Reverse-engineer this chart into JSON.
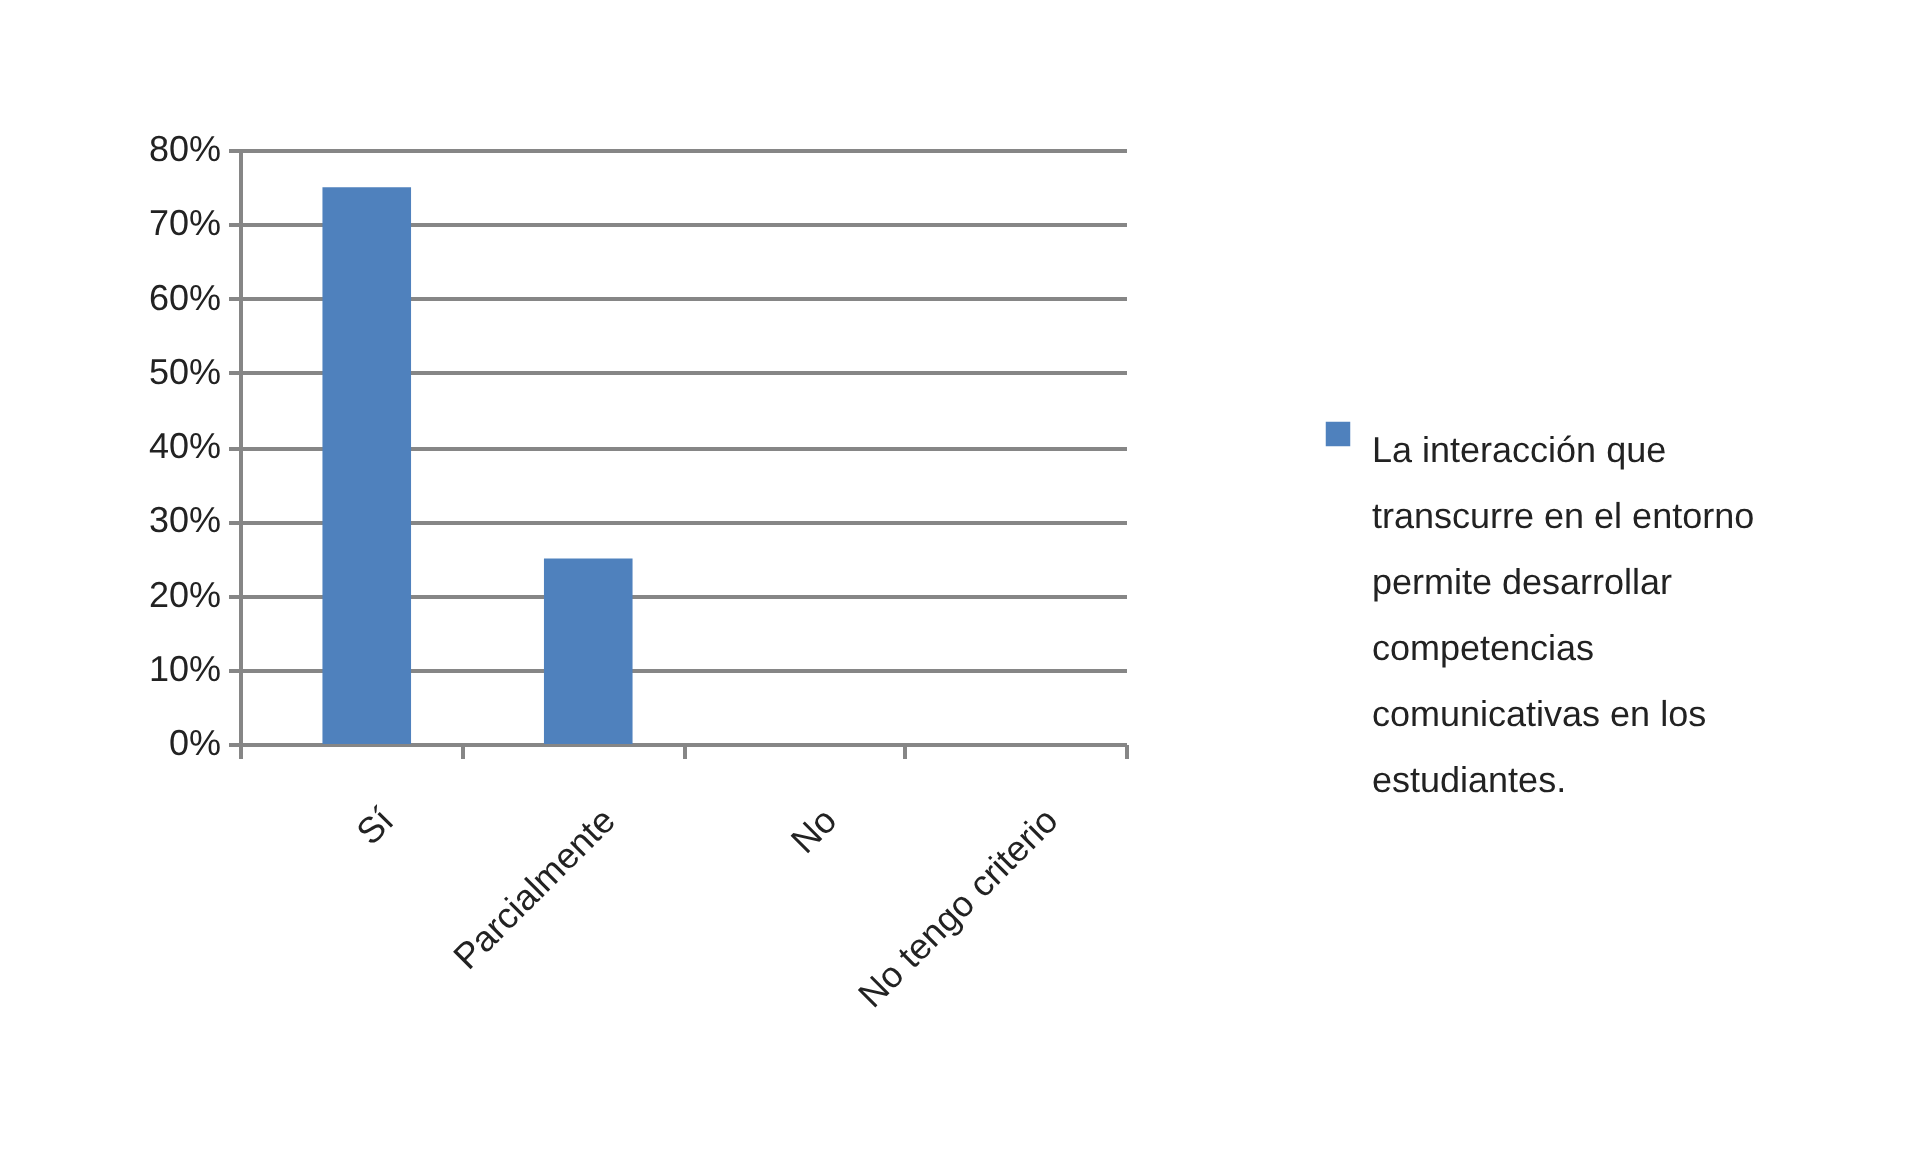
{
  "chart_data": {
    "type": "bar",
    "categories": [
      "Sí",
      "Parcialmente",
      "No",
      "No tengo criterio"
    ],
    "series": [
      {
        "name": "La interacción que transcurre en el entorno permite desarrollar competencias comunicativas en los estudiantes.",
        "color": "#4f81bd",
        "values": [
          75,
          25,
          0,
          0
        ]
      }
    ],
    "ylim": [
      0,
      80
    ],
    "yticks": [
      {
        "value": 0,
        "label": "0%"
      },
      {
        "value": 10,
        "label": "10%"
      },
      {
        "value": 20,
        "label": "20%"
      },
      {
        "value": 30,
        "label": "30%"
      },
      {
        "value": 40,
        "label": "40%"
      },
      {
        "value": 50,
        "label": "50%"
      },
      {
        "value": 60,
        "label": "60%"
      },
      {
        "value": 70,
        "label": "70%"
      },
      {
        "value": 80,
        "label": "80%"
      }
    ],
    "grid": "y",
    "legend": "right"
  }
}
